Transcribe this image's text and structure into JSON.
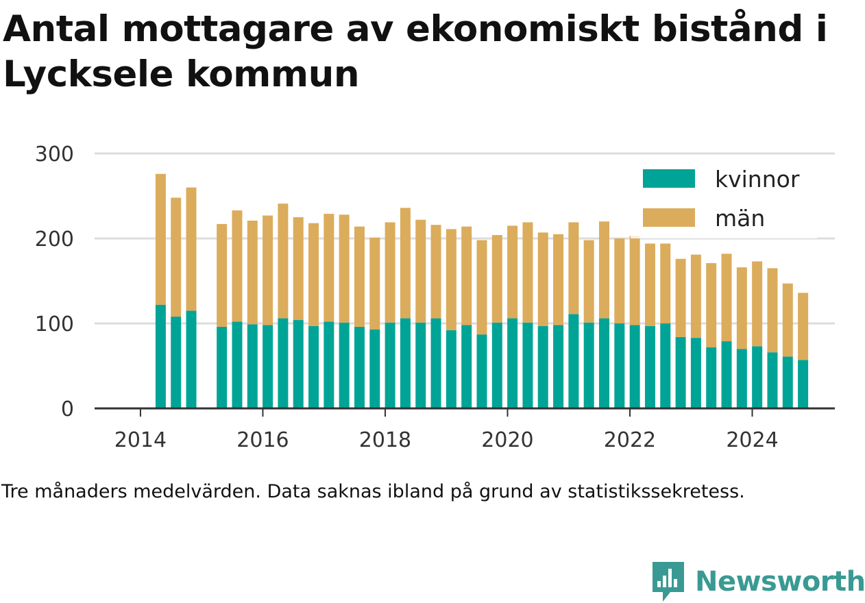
{
  "title": "Antal mottagare av ekonomiskt bistånd i Lycksele kommun",
  "note": "Tre månaders medelvärden. Data saknas ibland på grund av statistikssekretess.",
  "brand": {
    "name": "Newsworthy",
    "icon": "newsworthy-logo-icon",
    "color": "#3a9a93"
  },
  "chart_data": {
    "type": "bar",
    "stacked": true,
    "xlabel": "",
    "ylabel": "",
    "ylim": [
      0,
      300
    ],
    "xlim": [
      2013.25,
      2025.35
    ],
    "yticks": [
      0,
      100,
      200,
      300
    ],
    "xticks": [
      2014,
      2016,
      2018,
      2020,
      2022,
      2024
    ],
    "grid": true,
    "legend": "top-right",
    "colors": {
      "kvinnor": "#00a497",
      "män": "#dbac5c"
    },
    "x": [
      2014.33,
      2014.58,
      2014.83,
      2015.33,
      2015.58,
      2015.83,
      2016.08,
      2016.33,
      2016.58,
      2016.83,
      2017.08,
      2017.33,
      2017.58,
      2017.83,
      2018.08,
      2018.33,
      2018.58,
      2018.83,
      2019.08,
      2019.33,
      2019.58,
      2019.83,
      2020.08,
      2020.33,
      2020.58,
      2020.83,
      2021.08,
      2021.33,
      2021.58,
      2021.83,
      2022.08,
      2022.33,
      2022.58,
      2022.83,
      2023.08,
      2023.33,
      2023.58,
      2023.83,
      2024.08,
      2024.33,
      2024.58,
      2024.83
    ],
    "series": [
      {
        "name": "kvinnor",
        "values": [
          122,
          108,
          115,
          96,
          102,
          99,
          98,
          106,
          104,
          97,
          102,
          101,
          96,
          93,
          101,
          106,
          101,
          106,
          92,
          98,
          87,
          101,
          106,
          101,
          97,
          98,
          111,
          101,
          106,
          100,
          98,
          97,
          100,
          84,
          83,
          72,
          79,
          70,
          73,
          66,
          61,
          57
        ]
      },
      {
        "name": "män",
        "values": [
          154,
          140,
          145,
          121,
          131,
          122,
          129,
          135,
          121,
          121,
          127,
          127,
          118,
          108,
          118,
          130,
          121,
          110,
          119,
          116,
          111,
          103,
          109,
          118,
          110,
          107,
          108,
          97,
          114,
          100,
          105,
          97,
          94,
          92,
          98,
          99,
          103,
          96,
          100,
          99,
          86,
          79
        ]
      }
    ]
  }
}
